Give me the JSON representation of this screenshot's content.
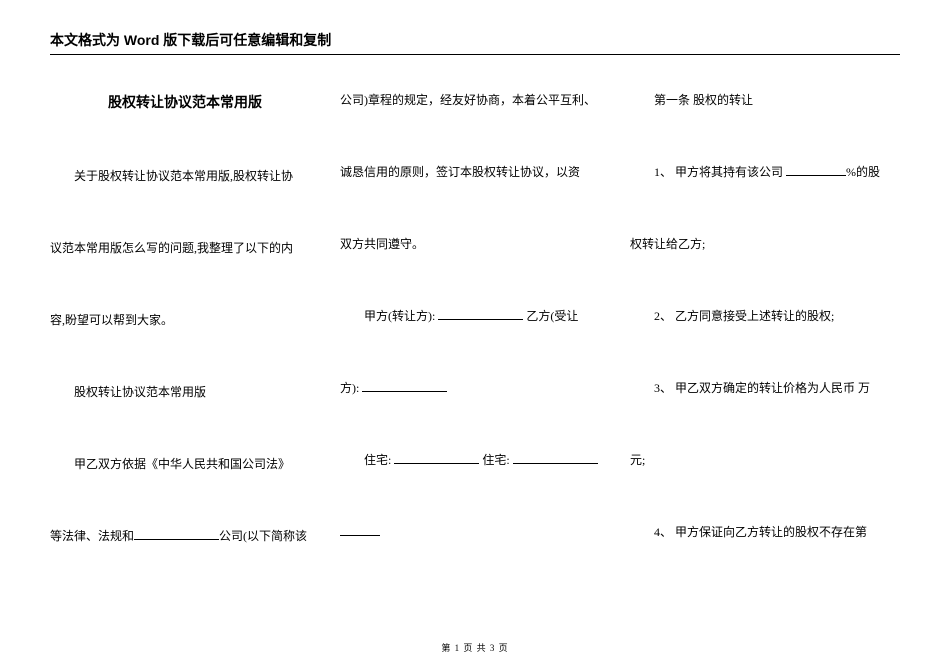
{
  "header": "本文格式为 Word 版下载后可任意编辑和复制",
  "col1": {
    "title": "股权转让协议范本常用版",
    "p1": "关于股权转让协议范本常用版,股权转让协",
    "p2": "议范本常用版怎么写的问题,我整理了以下的内",
    "p3": "容,盼望可以帮到大家。",
    "p4": "股权转让协议范本常用版",
    "p5a": "甲乙双方依据《中华人民共和国公司法》",
    "p6a": "等法律、法规和",
    "p6b": "公司(以下简称该"
  },
  "col2": {
    "p1": "公司)章程的规定，经友好协商，本着公平互利、",
    "p2": "诚恳信用的原则，签订本股权转让协议，以资",
    "p3": "双方共同遵守。",
    "p4a": "甲方(转让方):",
    "p4b": "乙方(受让",
    "p5": "方):",
    "p6a": "住宅:",
    "p6b": "住宅:"
  },
  "col3": {
    "p1": "第一条 股权的转让",
    "p2a": "1、 甲方将其持有该公司",
    "p2b": "%的股",
    "p3": "权转让给乙方;",
    "p4": "2、 乙方同意接受上述转让的股权;",
    "p5": "3、 甲乙双方确定的转让价格为人民币 万",
    "p6": "元;",
    "p7": "4、 甲方保证向乙方转让的股权不存在第"
  },
  "footer": {
    "prefix": "第 ",
    "cur": "1",
    "mid": " 页 共 ",
    "total": "3",
    "suffix": " 页"
  },
  "style": {
    "page_bg": "#ffffff",
    "text_color": "#000000",
    "header_font": "SimHei",
    "body_font": "SimSun",
    "header_fontsize": 14,
    "body_fontsize": 12,
    "footer_fontsize": 9,
    "line_height": 2.0,
    "columns": 3,
    "rule_color": "#000000"
  }
}
